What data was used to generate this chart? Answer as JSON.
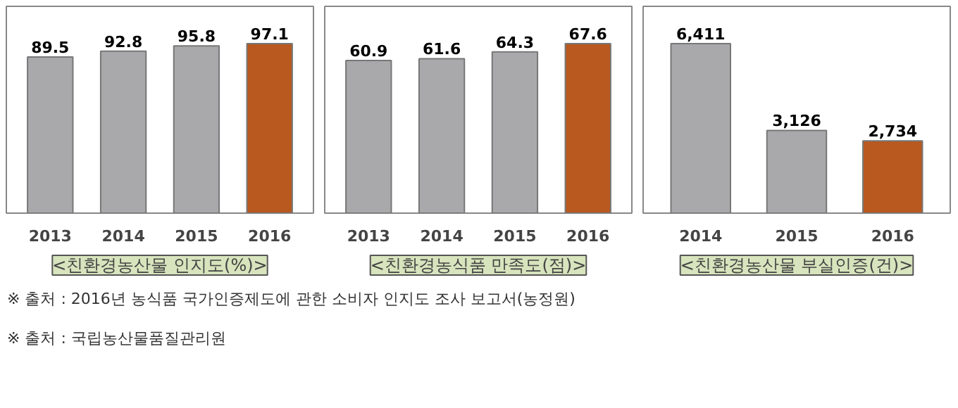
{
  "chart_data": [
    {
      "type": "bar",
      "title": "<친환경농산물 인지도(%)>",
      "categories": [
        "2013",
        "2014",
        "2015",
        "2016"
      ],
      "values": [
        89.5,
        92.8,
        95.8,
        97.1
      ],
      "colors": [
        "#a9a9ab",
        "#a9a9ab",
        "#a9a9ab",
        "#b9581f"
      ],
      "data_labels": true,
      "grid": false
    },
    {
      "type": "bar",
      "title": "<친환경농식품 만족도(점)>",
      "categories": [
        "2013",
        "2014",
        "2015",
        "2016"
      ],
      "values": [
        60.9,
        61.6,
        64.3,
        67.6
      ],
      "colors": [
        "#a9a9ab",
        "#a9a9ab",
        "#a9a9ab",
        "#b9581f"
      ],
      "data_labels": true,
      "grid": false
    },
    {
      "type": "bar",
      "title": "<친환경농산물 부실인증(건)>",
      "categories": [
        "2014",
        "2015",
        "2016"
      ],
      "values": [
        6411,
        3126,
        2734
      ],
      "value_labels": [
        "6,411",
        "3,126",
        "2,734"
      ],
      "colors": [
        "#a9a9ab",
        "#a9a9ab",
        "#b9581f"
      ],
      "grid": false,
      "annotations": [
        "※  출처 : 2016년 농식품 국가인증제도에 관한 소비자 인지도 조사 보고서(농정원)",
        "※  출처 : 국립농산물품질관리원"
      ]
    }
  ]
}
